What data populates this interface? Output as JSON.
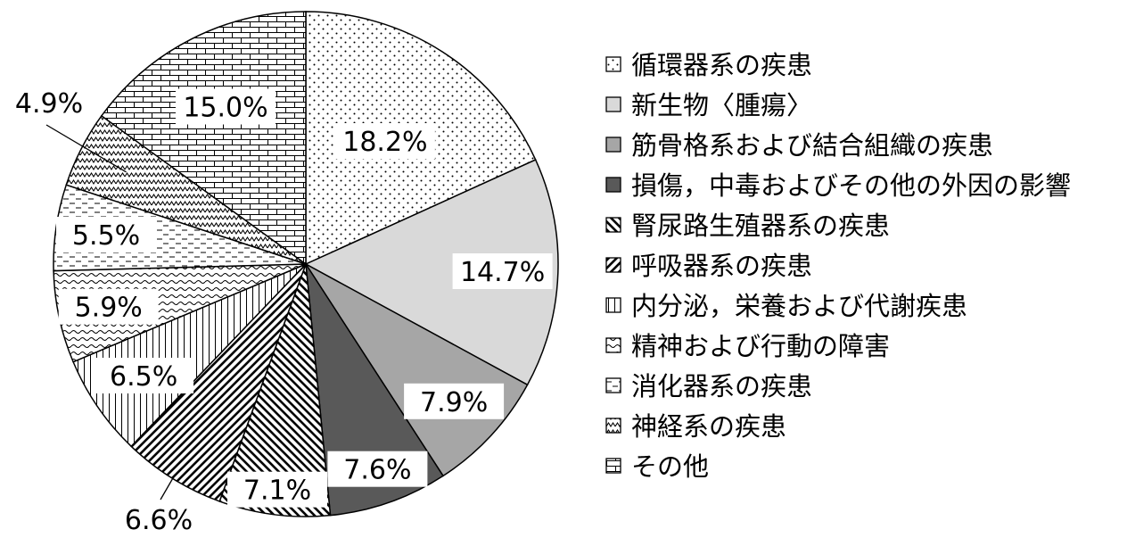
{
  "chart_data": {
    "type": "pie",
    "slices": [
      {
        "label": "循環器系の疾患",
        "value": 18.2,
        "value_label": "18.2%",
        "fill": "#ffffff",
        "pattern": "dots"
      },
      {
        "label": "新生物〈腫瘍〉",
        "value": 14.7,
        "value_label": "14.7%",
        "fill": "#d9d9d9",
        "pattern": "solid"
      },
      {
        "label": "筋骨格系および結合組織の疾患",
        "value": 7.9,
        "value_label": "7.9%",
        "fill": "#a6a6a6",
        "pattern": "solid"
      },
      {
        "label": "損傷，中毒およびその他の外因の影響",
        "value": 7.6,
        "value_label": "7.6%",
        "fill": "#595959",
        "pattern": "solid"
      },
      {
        "label": "腎尿路生殖器系の疾患",
        "value": 7.1,
        "value_label": "7.1%",
        "fill": "#ffffff",
        "pattern": "diag-back"
      },
      {
        "label": "呼吸器系の疾患",
        "value": 6.6,
        "value_label": "6.6%",
        "fill": "#ffffff",
        "pattern": "diag-fwd"
      },
      {
        "label": "内分泌，栄養および代謝疾患",
        "value": 6.5,
        "value_label": "6.5%",
        "fill": "#ffffff",
        "pattern": "vertical"
      },
      {
        "label": "精神および行動の障害",
        "value": 5.9,
        "value_label": "5.9%",
        "fill": "#ffffff",
        "pattern": "small-waves"
      },
      {
        "label": "消化器系の疾患",
        "value": 5.5,
        "value_label": "5.5%",
        "fill": "#ffffff",
        "pattern": "dashes"
      },
      {
        "label": "神経系の疾患",
        "value": 4.9,
        "value_label": "4.9%",
        "fill": "#ffffff",
        "pattern": "zigzag"
      },
      {
        "label": "その他",
        "value": 15.0,
        "value_label": "15.0%",
        "fill": "#ffffff",
        "pattern": "bricks"
      }
    ],
    "start_angle_deg": 0,
    "direction": "clockwise",
    "legend_position": "right",
    "title": ""
  }
}
